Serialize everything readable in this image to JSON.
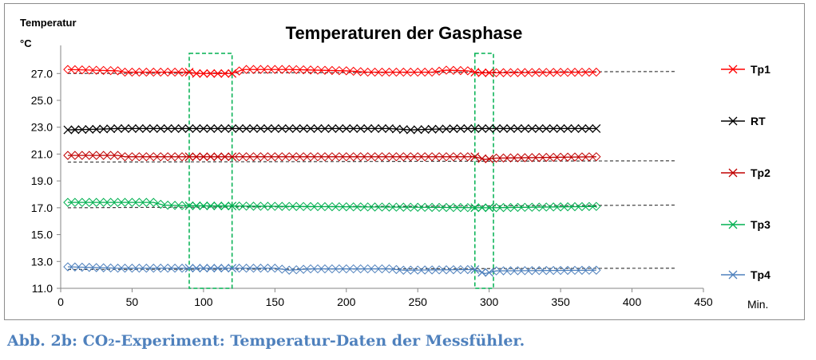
{
  "chart_data": {
    "type": "line",
    "title": "Temperaturen der Gasphase",
    "ylabel_line1": "Temperatur",
    "ylabel_line2": "°C",
    "xlabel": "Min.",
    "xlim": [
      0,
      450
    ],
    "ylim": [
      11.0,
      28.5
    ],
    "x_ticks": [
      "0",
      "50",
      "100",
      "150",
      "200",
      "250",
      "300",
      "350",
      "400",
      "450"
    ],
    "y_ticks": [
      "11.0",
      "13.0",
      "15.0",
      "17.0",
      "19.0",
      "21.0",
      "23.0",
      "25.0",
      "27.0"
    ],
    "grid": false,
    "legend_position": "right",
    "series": [
      {
        "name": "Tp1",
        "color": "#ff0000",
        "points": [
          [
            5,
            27.3
          ],
          [
            40,
            27.2
          ],
          [
            45,
            27.1
          ],
          [
            90,
            27.1
          ],
          [
            95,
            27.0
          ],
          [
            120,
            27.0
          ],
          [
            128,
            27.3
          ],
          [
            160,
            27.3
          ],
          [
            200,
            27.2
          ],
          [
            215,
            27.1
          ],
          [
            260,
            27.1
          ],
          [
            270,
            27.25
          ],
          [
            285,
            27.2
          ],
          [
            292,
            27.05
          ],
          [
            375,
            27.1
          ]
        ],
        "reference_points": [
          [
            5,
            27.0
          ],
          [
            430,
            27.15
          ]
        ]
      },
      {
        "name": "RT",
        "color": "#000000",
        "points": [
          [
            5,
            22.8
          ],
          [
            25,
            22.85
          ],
          [
            40,
            22.9
          ],
          [
            230,
            22.9
          ],
          [
            245,
            22.8
          ],
          [
            260,
            22.85
          ],
          [
            280,
            22.9
          ],
          [
            375,
            22.9
          ]
        ],
        "reference_points": []
      },
      {
        "name": "Tp2",
        "color": "#c00000",
        "points": [
          [
            5,
            20.9
          ],
          [
            40,
            20.9
          ],
          [
            45,
            20.8
          ],
          [
            290,
            20.8
          ],
          [
            297,
            20.6
          ],
          [
            305,
            20.7
          ],
          [
            375,
            20.8
          ]
        ],
        "reference_points": [
          [
            5,
            20.4
          ],
          [
            430,
            20.5
          ]
        ]
      },
      {
        "name": "Tp3",
        "color": "#00b050",
        "points": [
          [
            5,
            17.4
          ],
          [
            65,
            17.4
          ],
          [
            72,
            17.2
          ],
          [
            90,
            17.15
          ],
          [
            375,
            17.1
          ],
          [
            300,
            17.0
          ],
          [
            375,
            17.0
          ]
        ],
        "reference_points": [
          [
            5,
            17.0
          ],
          [
            430,
            17.2
          ]
        ]
      },
      {
        "name": "Tp4",
        "color": "#4f81bd",
        "points": [
          [
            5,
            12.6
          ],
          [
            40,
            12.5
          ],
          [
            150,
            12.5
          ],
          [
            160,
            12.35
          ],
          [
            175,
            12.45
          ],
          [
            230,
            12.45
          ],
          [
            240,
            12.35
          ],
          [
            290,
            12.4
          ],
          [
            297,
            12.1
          ],
          [
            305,
            12.3
          ],
          [
            375,
            12.35
          ]
        ],
        "reference_points": [
          [
            5,
            12.4
          ],
          [
            430,
            12.5
          ]
        ]
      }
    ],
    "highlight_boxes": [
      {
        "x": [
          90,
          120
        ],
        "y": [
          11.0,
          28.5
        ],
        "color": "#00b050"
      },
      {
        "x": [
          290,
          303
        ],
        "y": [
          11.0,
          28.5
        ],
        "color": "#00b050"
      }
    ]
  },
  "caption": "Abb. 2b: CO₂-Experiment: Temperatur-Daten der Messfühler."
}
